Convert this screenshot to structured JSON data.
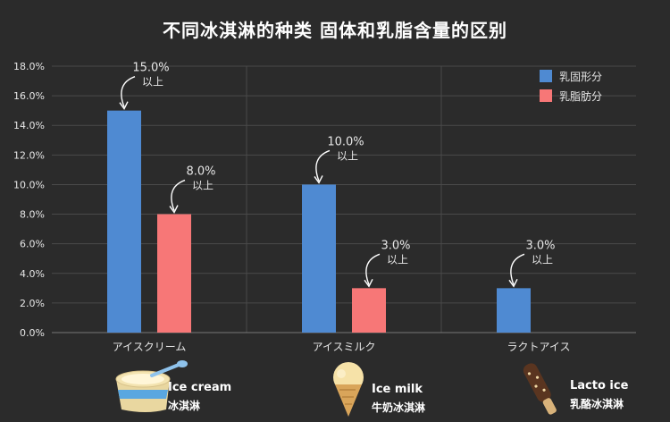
{
  "title": "不同冰淇淋的种类 固体和乳脂含量的区别",
  "colors": {
    "background": "#2b2b2b",
    "solids": "#4f8ad2",
    "fat": "#f77777",
    "grid": "#4a4a4a",
    "axis_text": "#e6e6e6"
  },
  "chart_data": {
    "type": "bar",
    "categories": [
      "アイスクリーム",
      "アイスミルク",
      "ラクトアイス"
    ],
    "series": [
      {
        "name": "乳固形分",
        "color": "#4f8ad2",
        "values": [
          15.0,
          10.0,
          3.0
        ]
      },
      {
        "name": "乳脂肪分",
        "color": "#f77777",
        "values": [
          8.0,
          3.0,
          null
        ]
      }
    ],
    "ylim": [
      0,
      18
    ],
    "yticks": [
      "0.0%",
      "2.0%",
      "4.0%",
      "6.0%",
      "8.0%",
      "10.0%",
      "12.0%",
      "14.0%",
      "16.0%",
      "18.0%"
    ],
    "grid": true,
    "legend": "top-right",
    "annotations": [
      {
        "series": 0,
        "category": 0,
        "value_text": "15.0%",
        "suffix": "以上"
      },
      {
        "series": 1,
        "category": 0,
        "value_text": "8.0%",
        "suffix": "以上"
      },
      {
        "series": 0,
        "category": 1,
        "value_text": "10.0%",
        "suffix": "以上"
      },
      {
        "series": 1,
        "category": 1,
        "value_text": "3.0%",
        "suffix": "以上"
      },
      {
        "series": 0,
        "category": 2,
        "value_text": "3.0%",
        "suffix": "以上"
      }
    ]
  },
  "bottom": [
    {
      "en": "Ice cream",
      "cn": "冰淇淋",
      "icon": "ice-cream-cup-icon"
    },
    {
      "en": "Ice milk",
      "cn": "牛奶冰淇淋",
      "icon": "ice-cream-cone-icon"
    },
    {
      "en": "Lacto ice",
      "cn": "乳酪冰淇淋",
      "icon": "ice-pop-bar-icon"
    }
  ]
}
